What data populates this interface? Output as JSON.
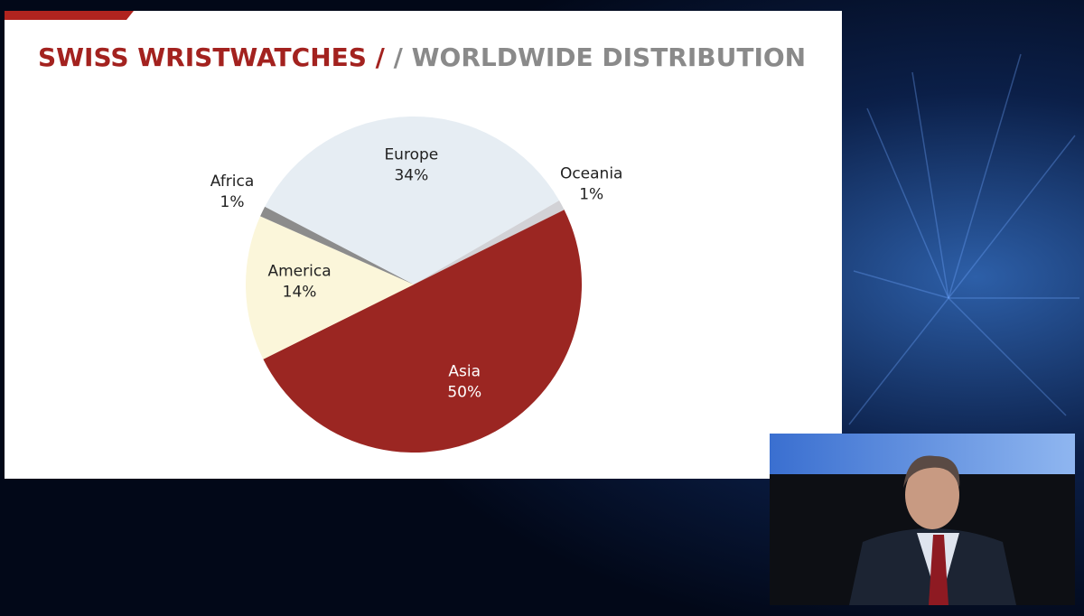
{
  "chart_data": {
    "type": "pie",
    "title": "SWISS WRISTWATCHES /",
    "subtitle": "/ WORLDWIDE DISTRIBUTION",
    "categories": [
      "Europe",
      "Oceania",
      "Asia",
      "America",
      "Africa"
    ],
    "values": [
      34,
      1,
      50,
      14,
      1
    ],
    "value_labels": [
      "34%",
      "1%",
      "50%",
      "14%",
      "1%"
    ],
    "colors": [
      "#e6edf3",
      "#d2d2d6",
      "#9b2622",
      "#fbf6da",
      "#8c8c8c"
    ]
  }
}
